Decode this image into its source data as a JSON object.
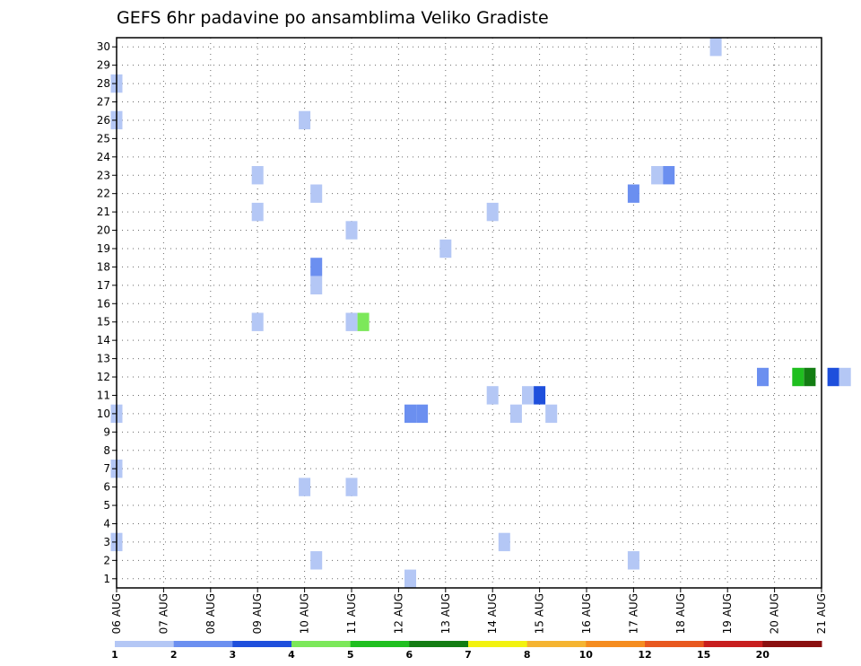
{
  "chart_data": {
    "type": "heatmap",
    "title": "GEFS 6hr padavine po ansamblima Veliko Gradiste",
    "xlabel": "",
    "ylabel": "",
    "x_ticks": [
      "06 AUG",
      "07 AUG",
      "08 AUG",
      "09 AUG",
      "10 AUG",
      "11 AUG",
      "12 AUG",
      "13 AUG",
      "14 AUG",
      "15 AUG",
      "16 AUG",
      "17 AUG",
      "18 AUG",
      "19 AUG",
      "20 AUG",
      "21 AUG"
    ],
    "y_ticks": [
      "1",
      "2",
      "3",
      "4",
      "5",
      "6",
      "7",
      "8",
      "9",
      "10",
      "11",
      "12",
      "13",
      "14",
      "15",
      "16",
      "17",
      "18",
      "19",
      "20",
      "21",
      "22",
      "23",
      "24",
      "25",
      "26",
      "27",
      "28",
      "29",
      "30"
    ],
    "xlim_days": [
      0,
      15
    ],
    "ylim": [
      0.5,
      30.5
    ],
    "grid": true,
    "colorbar": {
      "labels": [
        "1",
        "2",
        "3",
        "4",
        "5",
        "6",
        "7",
        "8",
        "10",
        "12",
        "15",
        "20"
      ],
      "colors": [
        "#b4c7f5",
        "#6b8ff0",
        "#1e4fdc",
        "#7ce85a",
        "#1fbf1f",
        "#137d13",
        "#f2f20f",
        "#f5b431",
        "#f58c1f",
        "#e8581f",
        "#c81e1e",
        "#8a1010"
      ]
    },
    "cells": [
      {
        "member": 30,
        "day": 12.75,
        "v": 1.6
      },
      {
        "member": 12,
        "day": 13.75,
        "v": 2
      },
      {
        "member": 12,
        "day": 14.5,
        "v": 5
      },
      {
        "member": 12,
        "day": 14.75,
        "v": 6
      },
      {
        "member": 12,
        "day": 15.25,
        "v": 3
      },
      {
        "member": 12,
        "day": 15.5,
        "v": 1
      },
      {
        "member": 28,
        "day": 0.0,
        "v": 1
      },
      {
        "member": 26,
        "day": 0.0,
        "v": 1
      },
      {
        "member": 26,
        "day": 4.0,
        "v": 1
      },
      {
        "member": 23,
        "day": 3.0,
        "v": 1
      },
      {
        "member": 23,
        "day": 11.5,
        "v": 1
      },
      {
        "member": 23,
        "day": 11.75,
        "v": 2
      },
      {
        "member": 22,
        "day": 4.25,
        "v": 1
      },
      {
        "member": 22,
        "day": 11.0,
        "v": 2
      },
      {
        "member": 21,
        "day": 3.0,
        "v": 1
      },
      {
        "member": 21,
        "day": 8.0,
        "v": 1
      },
      {
        "member": 20,
        "day": 5.0,
        "v": 1
      },
      {
        "member": 19,
        "day": 7.0,
        "v": 1
      },
      {
        "member": 18,
        "day": 4.25,
        "v": 2
      },
      {
        "member": 17,
        "day": 4.25,
        "v": 1
      },
      {
        "member": 15,
        "day": 3.0,
        "v": 1
      },
      {
        "member": 15,
        "day": 5.0,
        "v": 1
      },
      {
        "member": 15,
        "day": 5.25,
        "v": 4
      },
      {
        "member": 11,
        "day": 8.0,
        "v": 1
      },
      {
        "member": 11,
        "day": 8.75,
        "v": 1
      },
      {
        "member": 11,
        "day": 9.0,
        "v": 3
      },
      {
        "member": 10,
        "day": 0.0,
        "v": 1
      },
      {
        "member": 10,
        "day": 6.25,
        "v": 2
      },
      {
        "member": 10,
        "day": 6.5,
        "v": 2
      },
      {
        "member": 10,
        "day": 8.5,
        "v": 1
      },
      {
        "member": 10,
        "day": 9.25,
        "v": 1
      },
      {
        "member": 7,
        "day": 0.0,
        "v": 1
      },
      {
        "member": 6,
        "day": 4.0,
        "v": 1
      },
      {
        "member": 6,
        "day": 5.0,
        "v": 1
      },
      {
        "member": 3,
        "day": 0.0,
        "v": 1
      },
      {
        "member": 3,
        "day": 8.25,
        "v": 1
      },
      {
        "member": 2,
        "day": 4.25,
        "v": 1
      },
      {
        "member": 2,
        "day": 11.0,
        "v": 1
      },
      {
        "member": 1,
        "day": 6.25,
        "v": 1
      }
    ]
  }
}
